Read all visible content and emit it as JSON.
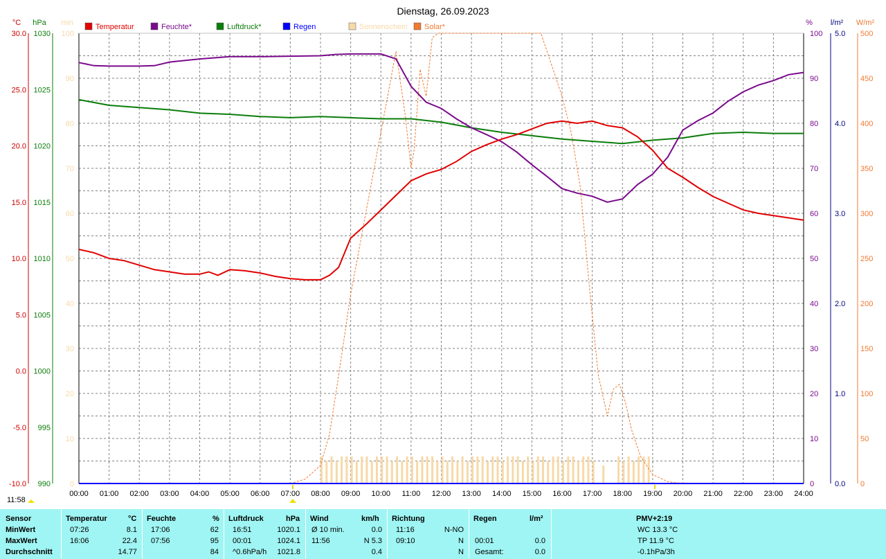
{
  "title": "Dienstag, 26.09.2023",
  "time_display": "11:58",
  "axes": {
    "temp_unit": "°C",
    "pressure_unit": "hPa",
    "sun_unit": "min",
    "humidity_unit": "%",
    "rain_unit": "l/m²",
    "solar_unit": "W/m²",
    "temp_ticks": [
      "30.0",
      "25.0",
      "20.0",
      "15.0",
      "10.0",
      "5.0",
      "0.0",
      "-5.0",
      "-10.0"
    ],
    "pressure_ticks": [
      "1030",
      "1025",
      "1020",
      "1015",
      "1010",
      "1005",
      "1000",
      "995",
      "990"
    ],
    "sun_ticks": [
      "100",
      "90",
      "80",
      "70",
      "60",
      "50",
      "40",
      "30",
      "20",
      "10",
      "0"
    ],
    "humidity_ticks": [
      "100",
      "90",
      "80",
      "70",
      "60",
      "50",
      "40",
      "30",
      "20",
      "10",
      "0"
    ],
    "rain_ticks": [
      "5.0",
      "4.0",
      "3.0",
      "2.0",
      "1.0",
      "0.0"
    ],
    "solar_ticks": [
      "500",
      "450",
      "400",
      "350",
      "300",
      "250",
      "200",
      "150",
      "100",
      "50",
      "0"
    ],
    "x_ticks": [
      "00:00",
      "01:00",
      "02:00",
      "03:00",
      "04:00",
      "05:00",
      "06:00",
      "07:00",
      "08:00",
      "09:00",
      "10:00",
      "11:00",
      "12:00",
      "13:00",
      "14:00",
      "15:00",
      "16:00",
      "17:00",
      "18:00",
      "19:00",
      "20:00",
      "21:00",
      "22:00",
      "23:00",
      "24:00"
    ]
  },
  "legend": [
    {
      "label": "Temperatur",
      "color": "#e00000"
    },
    {
      "label": "Feuchte*",
      "color": "#7a0a8c"
    },
    {
      "label": "Luftdruck*",
      "color": "#0a7d0a"
    },
    {
      "label": "Regen",
      "color": "#0000ff"
    },
    {
      "label": "Sonnenschein",
      "color": "#f7d9a8"
    },
    {
      "label": "Solar*",
      "color": "#f07a30"
    }
  ],
  "chart_data": {
    "type": "line",
    "x_unit": "hour",
    "xlim": [
      0,
      24
    ],
    "series": [
      {
        "name": "Temperatur",
        "unit": "°C",
        "ylim": [
          -10,
          30
        ],
        "color": "#e00000",
        "x": [
          0,
          0.5,
          1,
          1.5,
          2,
          2.5,
          3,
          3.5,
          4,
          4.3,
          4.6,
          5,
          5.5,
          6,
          6.5,
          7,
          7.5,
          8,
          8.3,
          8.6,
          8.8,
          9,
          9.5,
          10,
          10.5,
          11,
          11.5,
          12,
          12.5,
          13,
          13.5,
          14,
          14.5,
          15,
          15.5,
          16,
          16.5,
          17,
          17.5,
          18,
          18.5,
          19,
          19.5,
          20,
          20.5,
          21,
          21.5,
          22,
          22.5,
          23,
          23.5,
          24
        ],
        "values": [
          10.8,
          10.5,
          10.0,
          9.8,
          9.4,
          9.0,
          8.8,
          8.6,
          8.6,
          8.8,
          8.5,
          9.0,
          8.9,
          8.7,
          8.4,
          8.2,
          8.1,
          8.1,
          8.5,
          9.2,
          10.5,
          11.8,
          13.0,
          14.3,
          15.6,
          16.9,
          17.5,
          17.9,
          18.6,
          19.5,
          20.1,
          20.6,
          21.0,
          21.5,
          22.0,
          22.2,
          22.0,
          22.2,
          21.8,
          21.6,
          20.8,
          19.6,
          18.0,
          17.2,
          16.3,
          15.5,
          14.9,
          14.3,
          14.0,
          13.8,
          13.6,
          13.4
        ]
      },
      {
        "name": "Feuchte*",
        "unit": "%",
        "ylim": [
          0,
          100
        ],
        "color": "#7a0a8c",
        "x": [
          0,
          0.5,
          1,
          2,
          2.5,
          3,
          4,
          5,
          6,
          7,
          8,
          8.5,
          9,
          10,
          10.5,
          11,
          11.5,
          12,
          12.5,
          13,
          13.5,
          14,
          14.5,
          15,
          15.5,
          16,
          16.5,
          17,
          17.5,
          18,
          18.5,
          19,
          19.5,
          20,
          20.5,
          21,
          21.5,
          22,
          22.5,
          23,
          23.5,
          24
        ],
        "values": [
          93.5,
          92.8,
          92.7,
          92.7,
          92.8,
          93.6,
          94.3,
          94.8,
          94.8,
          94.9,
          95.0,
          95.3,
          95.4,
          95.4,
          94.3,
          88.2,
          84.7,
          83.3,
          81.0,
          79.0,
          77.5,
          75.9,
          73.6,
          70.8,
          68.2,
          65.5,
          64.5,
          63.8,
          62.5,
          63.2,
          66.4,
          68.7,
          72.5,
          78.5,
          80.6,
          82.3,
          84.9,
          87.0,
          88.5,
          89.5,
          90.8,
          91.3
        ]
      },
      {
        "name": "Luftdruck*",
        "unit": "hPa",
        "ylim": [
          990,
          1030
        ],
        "color": "#0a7d0a",
        "x": [
          0,
          1,
          2,
          3,
          4,
          5,
          6,
          7,
          8,
          9,
          10,
          11,
          12,
          13,
          14,
          15,
          16,
          17,
          18,
          19,
          20,
          21,
          22,
          23,
          24
        ],
        "values": [
          1024.1,
          1023.6,
          1023.4,
          1023.2,
          1022.9,
          1022.8,
          1022.6,
          1022.5,
          1022.6,
          1022.5,
          1022.4,
          1022.4,
          1022.1,
          1021.6,
          1021.2,
          1020.9,
          1020.6,
          1020.4,
          1020.2,
          1020.5,
          1020.7,
          1021.1,
          1021.2,
          1021.1,
          1021.1
        ]
      },
      {
        "name": "Regen",
        "unit": "l/m²",
        "ylim": [
          0,
          5
        ],
        "color": "#0000ff",
        "x": [
          0,
          24
        ],
        "values": [
          0,
          0
        ]
      },
      {
        "name": "Solar*",
        "unit": "W/m²",
        "ylim": [
          0,
          500
        ],
        "color": "#f07a30",
        "x": [
          7,
          7.5,
          8,
          8.3,
          8.6,
          9,
          9.5,
          10,
          10.5,
          10.8,
          11,
          11.1,
          11.3,
          11.5,
          11.7,
          11.9,
          12,
          15.3,
          15.6,
          16,
          16.3,
          16.6,
          16.9,
          17.2,
          17.5,
          17.7,
          17.9,
          18.1,
          18.3,
          18.6,
          19,
          19.5,
          20
        ],
        "values": [
          0,
          5,
          20,
          55,
          120,
          210,
          300,
          390,
          480,
          410,
          350,
          370,
          460,
          430,
          495,
          500,
          500,
          500,
          470,
          430,
          390,
          330,
          220,
          120,
          75,
          105,
          110,
          90,
          60,
          30,
          10,
          2,
          0
        ]
      },
      {
        "name": "Sonnenschein",
        "unit": "min",
        "ylim": [
          0,
          100
        ],
        "color": "#f7d9a8",
        "type": "bar",
        "bar_start": 8.0,
        "bar_step": 0.1667,
        "values": [
          6,
          5,
          6,
          5,
          6,
          6,
          6,
          5,
          6,
          6,
          5,
          6,
          6,
          6,
          5,
          6,
          5,
          6,
          6,
          5,
          6,
          6,
          6,
          5,
          6,
          5,
          6,
          5,
          6,
          5,
          6,
          6,
          6,
          5,
          6,
          6,
          5,
          6,
          6,
          6,
          5,
          6,
          5,
          6,
          6,
          5,
          6,
          6,
          5,
          6,
          6,
          5,
          6,
          6,
          5,
          0,
          4,
          0,
          0,
          6,
          5,
          6,
          5,
          6,
          6,
          6
        ]
      }
    ]
  },
  "stats": {
    "headers": {
      "sensor": "Sensor",
      "temp": "Temperatur",
      "temp_unit": "°C",
      "hum": "Feuchte",
      "hum_unit": "%",
      "press": "Luftdruck",
      "press_unit": "hPa",
      "wind": "Wind",
      "wind_unit": "km/h",
      "dir": "Richtung",
      "rain": "Regen",
      "rain_unit": "l/m²",
      "pmv": "PMV+2:19"
    },
    "rows": [
      {
        "label": "MinWert",
        "temp_time": "07:26",
        "temp_val": "8.1",
        "hum_time": "17:06",
        "hum_val": "62",
        "press_time": "16:51",
        "press_val": "1020.1",
        "wind_label": "Ø 10 min.",
        "wind_val": "0.0",
        "dir_time": "11:16",
        "dir_val": "N-NO",
        "rain_time": "",
        "rain_val": "",
        "extra": "WC 13.3 °C"
      },
      {
        "label": "MaxWert",
        "temp_time": "16:06",
        "temp_val": "22.4",
        "hum_time": "07:56",
        "hum_val": "95",
        "press_time": "00:01",
        "press_val": "1024.1",
        "wind_label": "11:56",
        "wind_val": "N 5.3",
        "dir_time": "09:10",
        "dir_val": "N",
        "rain_time": "00:01",
        "rain_val": "0.0",
        "extra": "TP 11.9 °C"
      },
      {
        "label": "Durchschnitt",
        "temp_time": "",
        "temp_val": "14.77",
        "hum_time": "",
        "hum_val": "84",
        "press_time": "^0.6hPa/h",
        "press_val": "1021.8",
        "wind_label": "",
        "wind_val": "0.4",
        "dir_time": "",
        "dir_val": "N",
        "rain_time": "Gesamt:",
        "rain_val": "0.0",
        "extra": "-0.1hPa/3h"
      }
    ]
  }
}
